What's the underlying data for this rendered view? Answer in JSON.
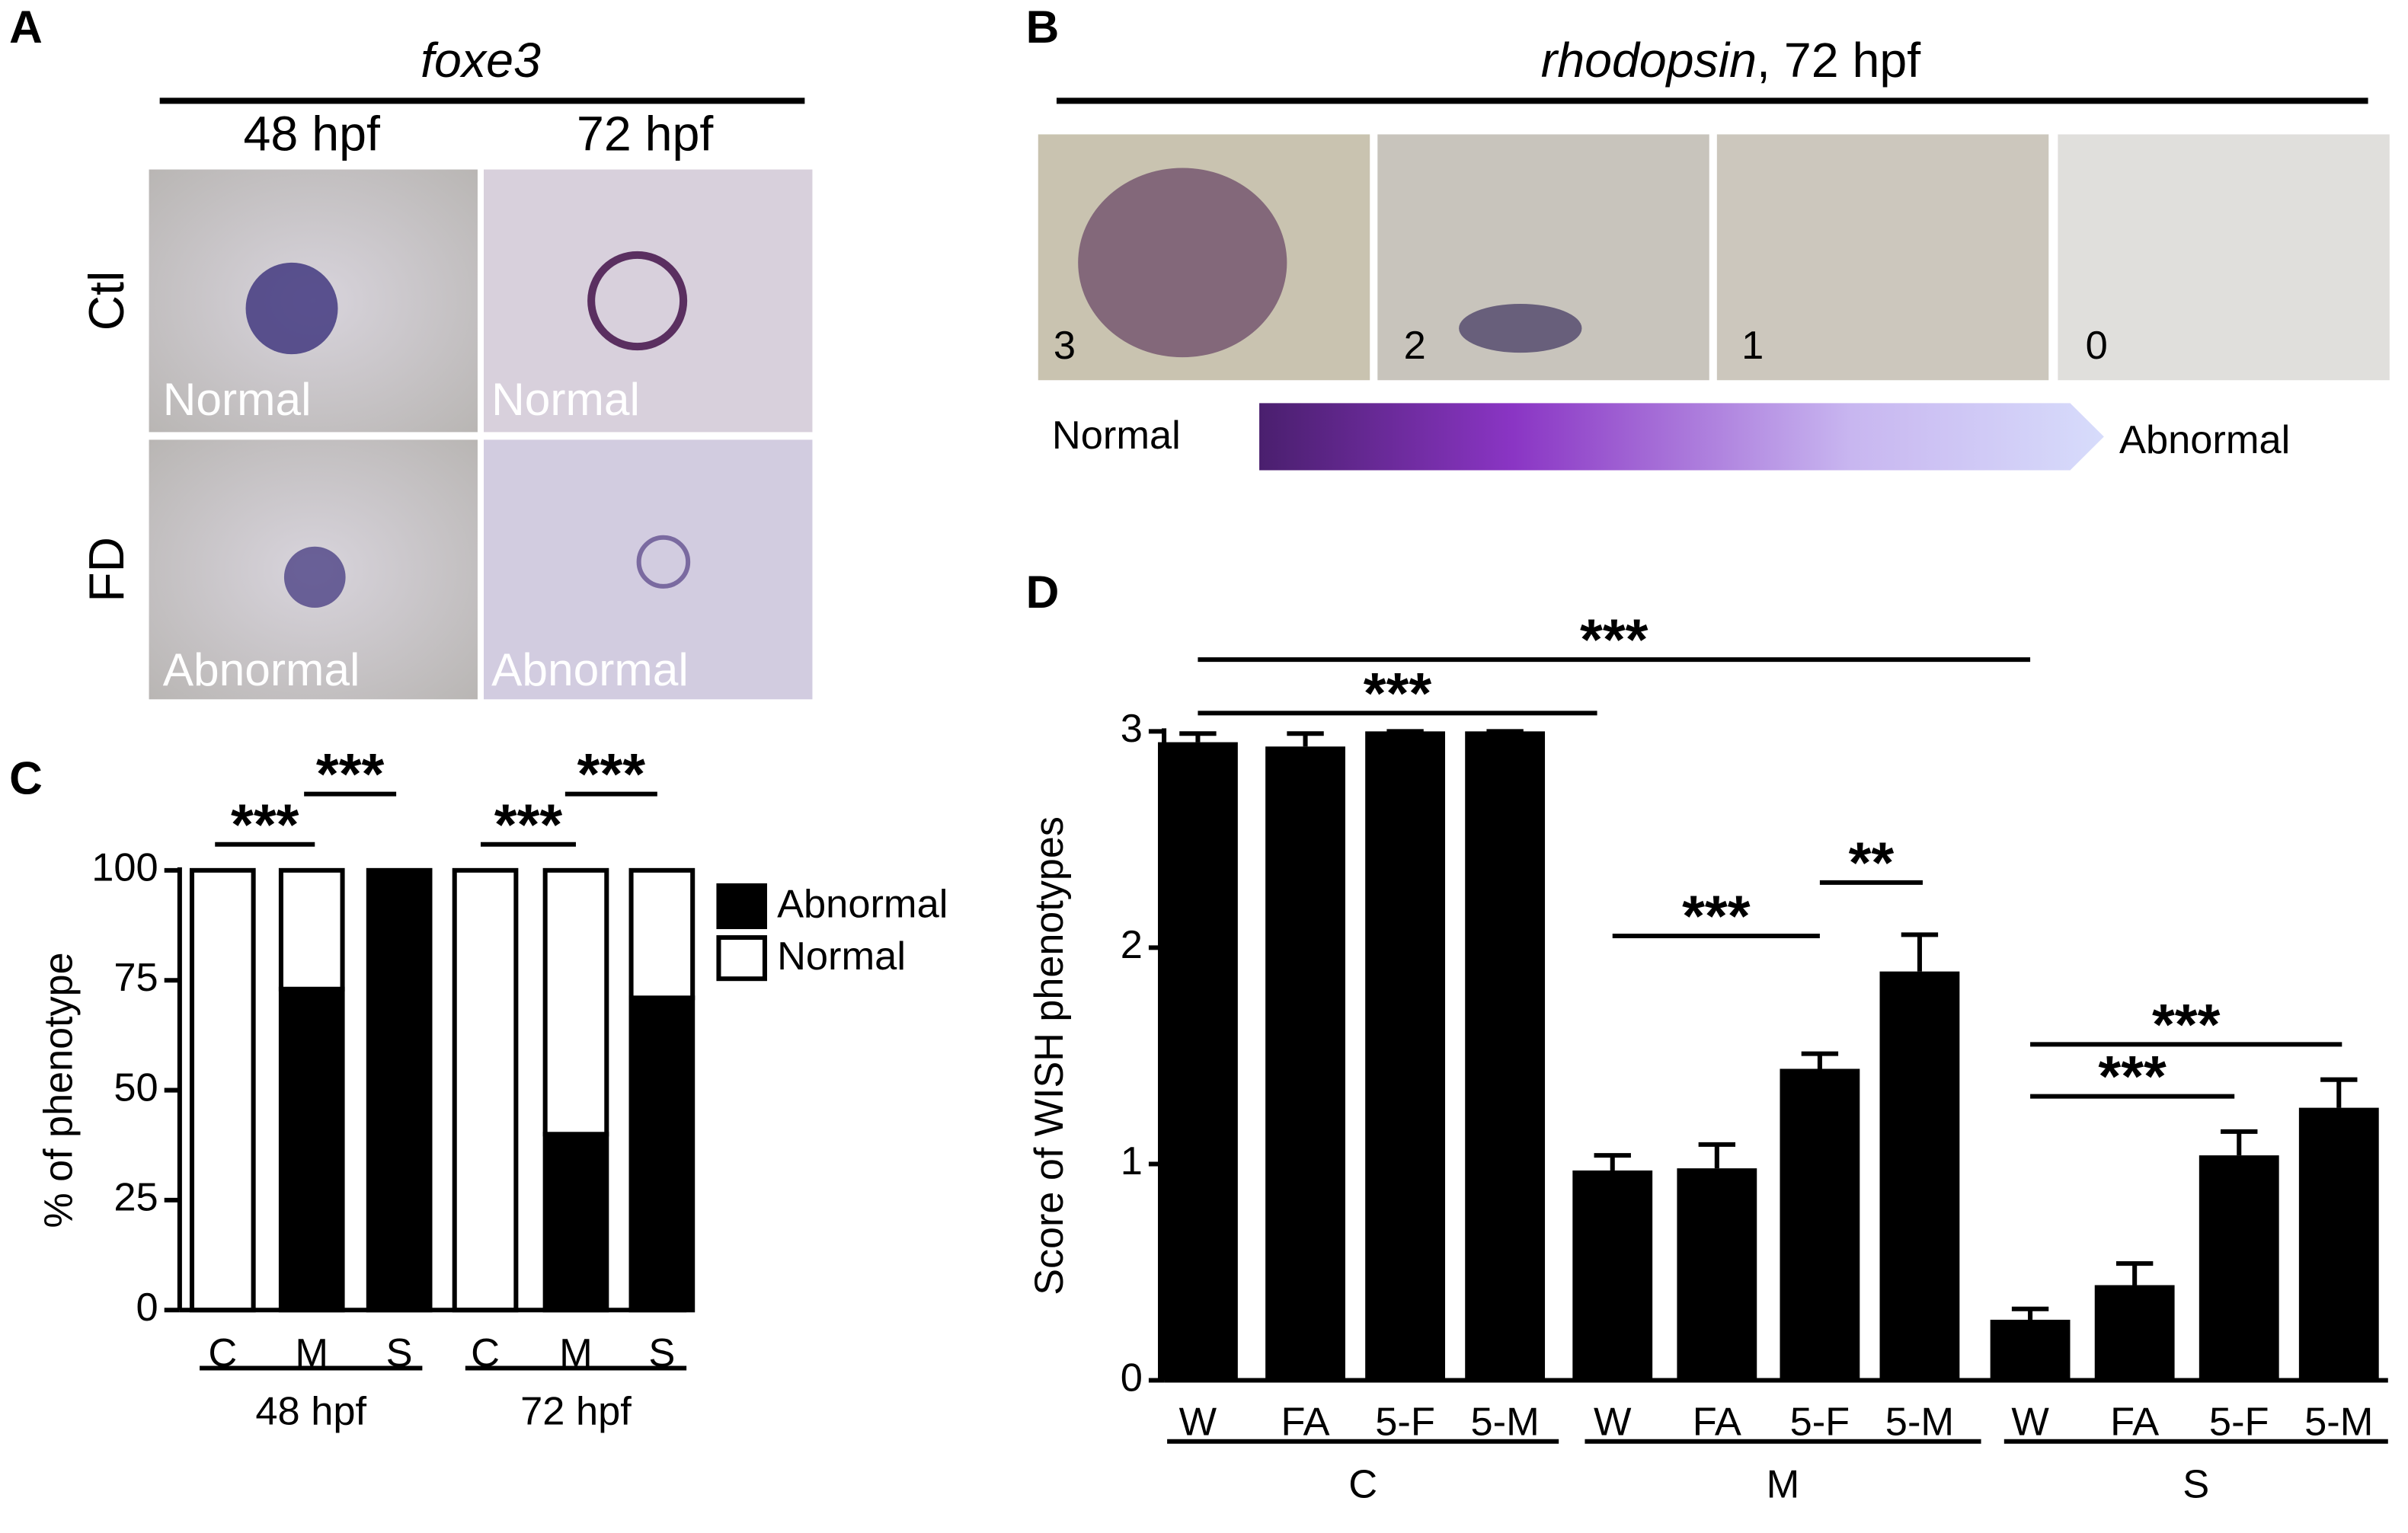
{
  "panels": {
    "A": {
      "label": "A",
      "title": "foxe3",
      "columns": [
        "48 hpf",
        "72 hpf"
      ],
      "rows": [
        "Ctl",
        "FD"
      ],
      "image_labels": [
        [
          "Normal",
          "Normal"
        ],
        [
          "Abnormal",
          "Abnormal"
        ]
      ]
    },
    "B": {
      "label": "B",
      "title": [
        "rhodopsin",
        ", 72 hpf"
      ],
      "scores": [
        "3",
        "2",
        "1",
        "0"
      ],
      "scale_labels": [
        "Normal",
        "Abnormal"
      ]
    },
    "C": {
      "label": "C"
    },
    "D": {
      "label": "D"
    }
  },
  "chart_data": [
    {
      "type": "stacked_bar",
      "ylabel": "% of phenotype",
      "categories": [
        "C",
        "M",
        "S",
        "C",
        "M",
        "S"
      ],
      "groups": [
        "48 hpf",
        "72 hpf"
      ],
      "series": [
        {
          "name": "Abnormal",
          "color": "#000000",
          "values": [
            0,
            73,
            100,
            0,
            40,
            71
          ]
        },
        {
          "name": "Normal",
          "color": "#ffffff",
          "values": [
            100,
            27,
            0,
            100,
            60,
            29
          ]
        }
      ],
      "ylim": [
        0,
        100
      ],
      "yticks": [
        0,
        25,
        50,
        75,
        100
      ],
      "legend": "upper right",
      "annotations": [
        "***",
        "***",
        "***",
        "***"
      ]
    },
    {
      "type": "bar_error",
      "ylabel": "Score of WISH phenotypes",
      "categories": [
        "W",
        "FA",
        "5-F",
        "5-M",
        "W",
        "FA",
        "5-F",
        "5-M",
        "W",
        "FA",
        "5-F",
        "5-M"
      ],
      "groups": [
        "C",
        "M",
        "S"
      ],
      "values": [
        2.95,
        2.93,
        3.0,
        3.0,
        0.97,
        0.98,
        1.44,
        1.89,
        0.28,
        0.44,
        1.04,
        1.26
      ],
      "errors": [
        0.04,
        0.06,
        0,
        0,
        0.07,
        0.11,
        0.07,
        0.17,
        0.05,
        0.1,
        0.11,
        0.13
      ],
      "color": "#000000",
      "ylim": [
        0,
        3
      ],
      "yticks": [
        0,
        1,
        2,
        3
      ],
      "annotations": [
        "***",
        "***",
        "***",
        "**",
        "***",
        "***"
      ]
    }
  ]
}
